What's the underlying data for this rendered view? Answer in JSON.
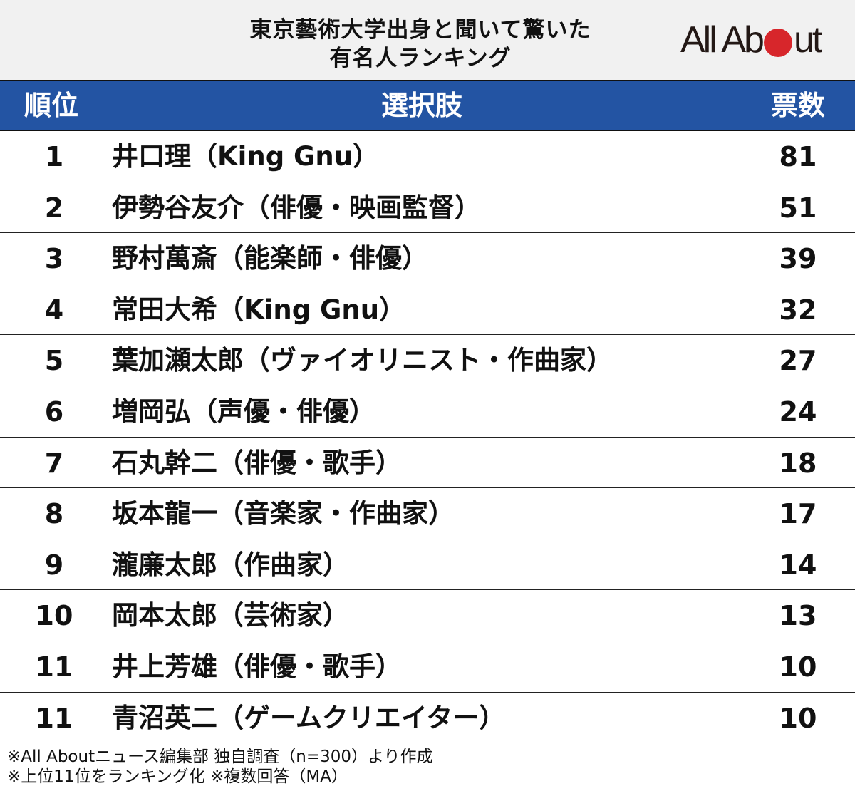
{
  "title": {
    "line1": "東京藝術大学出身と聞いて驚いた",
    "line2": "有名人ランキング"
  },
  "logo": {
    "left": "All Ab",
    "right": "ut",
    "dot_color": "#d7262b"
  },
  "header": {
    "rank": "順位",
    "choice": "選択肢",
    "votes": "票数",
    "bg_color": "#2354a3"
  },
  "rows": [
    {
      "rank": "1",
      "name": "井口理（King Gnu）",
      "votes": "81"
    },
    {
      "rank": "2",
      "name": "伊勢谷友介（俳優・映画監督）",
      "votes": "51"
    },
    {
      "rank": "3",
      "name": "野村萬斎（能楽師・俳優）",
      "votes": "39"
    },
    {
      "rank": "4",
      "name": "常田大希（King Gnu）",
      "votes": "32"
    },
    {
      "rank": "5",
      "name": "葉加瀬太郎（ヴァイオリニスト・作曲家）",
      "votes": "27"
    },
    {
      "rank": "6",
      "name": "増岡弘（声優・俳優）",
      "votes": "24"
    },
    {
      "rank": "7",
      "name": "石丸幹二（俳優・歌手）",
      "votes": "18"
    },
    {
      "rank": "8",
      "name": "坂本龍一（音楽家・作曲家）",
      "votes": "17"
    },
    {
      "rank": "9",
      "name": "瀧廉太郎（作曲家）",
      "votes": "14"
    },
    {
      "rank": "10",
      "name": "岡本太郎（芸術家）",
      "votes": "13"
    },
    {
      "rank": "11",
      "name": "井上芳雄（俳優・歌手）",
      "votes": "10"
    },
    {
      "rank": "11",
      "name": "青沼英二（ゲームクリエイター）",
      "votes": "10"
    }
  ],
  "footer": {
    "line1": "※All Aboutニュース編集部 独自調査（n=300）より作成",
    "line2": "※上位11位をランキング化 ※複数回答（MA）"
  },
  "chart_data": {
    "type": "table",
    "title": "東京藝術大学出身と聞いて驚いた有名人ランキング",
    "columns": [
      "順位",
      "選択肢",
      "票数"
    ],
    "categories": [
      "井口理（King Gnu）",
      "伊勢谷友介（俳優・映画監督）",
      "野村萬斎（能楽師・俳優）",
      "常田大希（King Gnu）",
      "葉加瀬太郎（ヴァイオリニスト・作曲家）",
      "増岡弘（声優・俳優）",
      "石丸幹二（俳優・歌手）",
      "坂本龍一（音楽家・作曲家）",
      "瀧廉太郎（作曲家）",
      "岡本太郎（芸術家）",
      "井上芳雄（俳優・歌手）",
      "青沼英二（ゲームクリエイター）"
    ],
    "ranks": [
      1,
      2,
      3,
      4,
      5,
      6,
      7,
      8,
      9,
      10,
      11,
      11
    ],
    "values": [
      81,
      51,
      39,
      32,
      27,
      24,
      18,
      17,
      14,
      13,
      10,
      10
    ],
    "notes": [
      "※All Aboutニュース編集部 独自調査（n=300）より作成",
      "※上位11位をランキング化 ※複数回答（MA）"
    ]
  }
}
